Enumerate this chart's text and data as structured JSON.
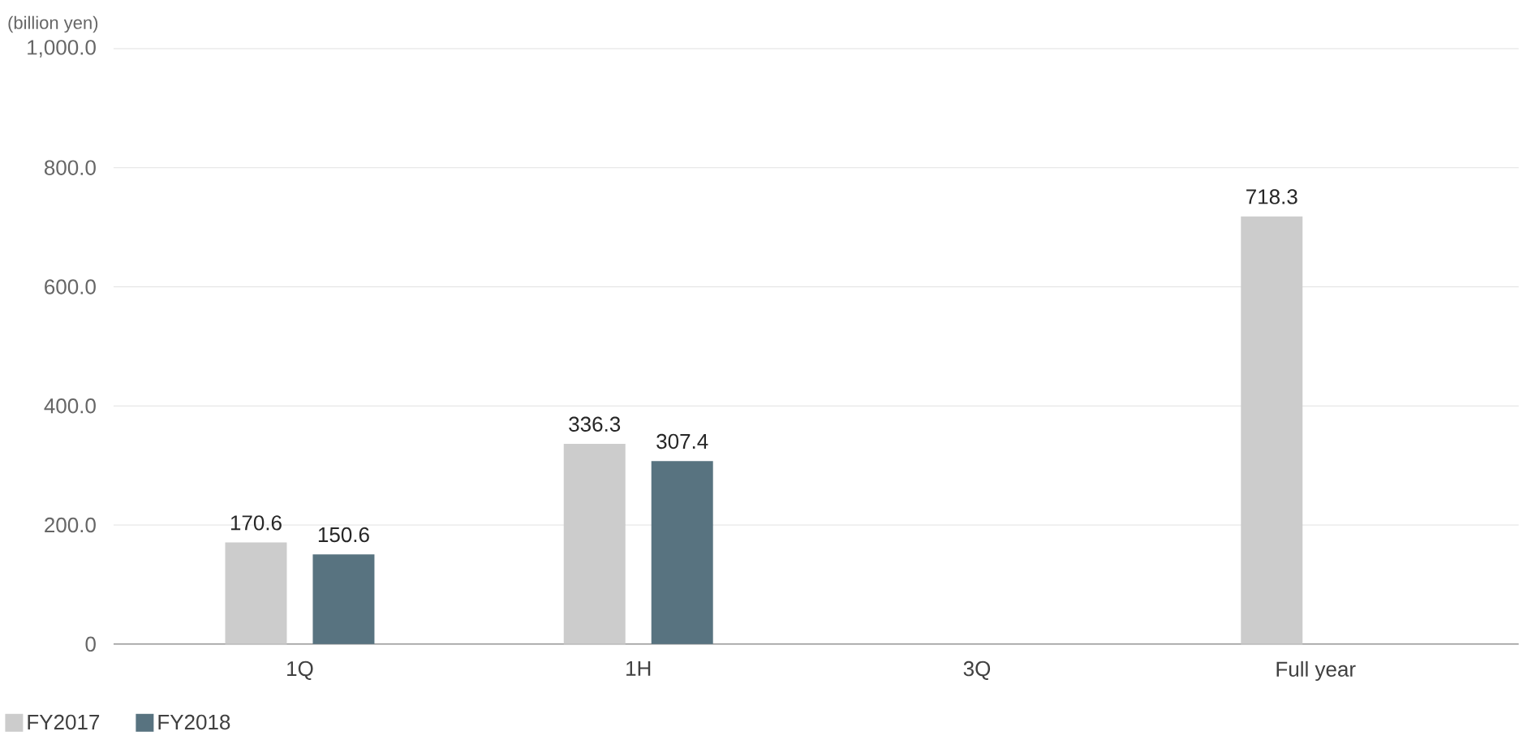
{
  "chart_data": {
    "type": "bar",
    "ylabel": "(billion yen)",
    "categories": [
      "1Q",
      "1H",
      "3Q",
      "Full year"
    ],
    "series": [
      {
        "name": "FY2017",
        "color": "#cccccc",
        "values": [
          170.6,
          336.3,
          null,
          718.3
        ]
      },
      {
        "name": "FY2018",
        "color": "#587380",
        "values": [
          150.6,
          307.4,
          null,
          null
        ]
      }
    ],
    "ylim": [
      0,
      1000
    ],
    "yticks": [
      0,
      {
        "value": 200,
        "label": "200.0"
      },
      {
        "value": 400,
        "label": "400.0"
      },
      {
        "value": 600,
        "label": "600.0"
      },
      {
        "value": 800,
        "label": "800.0"
      },
      {
        "value": 1000,
        "label": "1,000.0"
      }
    ],
    "grid": "y",
    "legend": "bottom left",
    "data_labels": true
  }
}
